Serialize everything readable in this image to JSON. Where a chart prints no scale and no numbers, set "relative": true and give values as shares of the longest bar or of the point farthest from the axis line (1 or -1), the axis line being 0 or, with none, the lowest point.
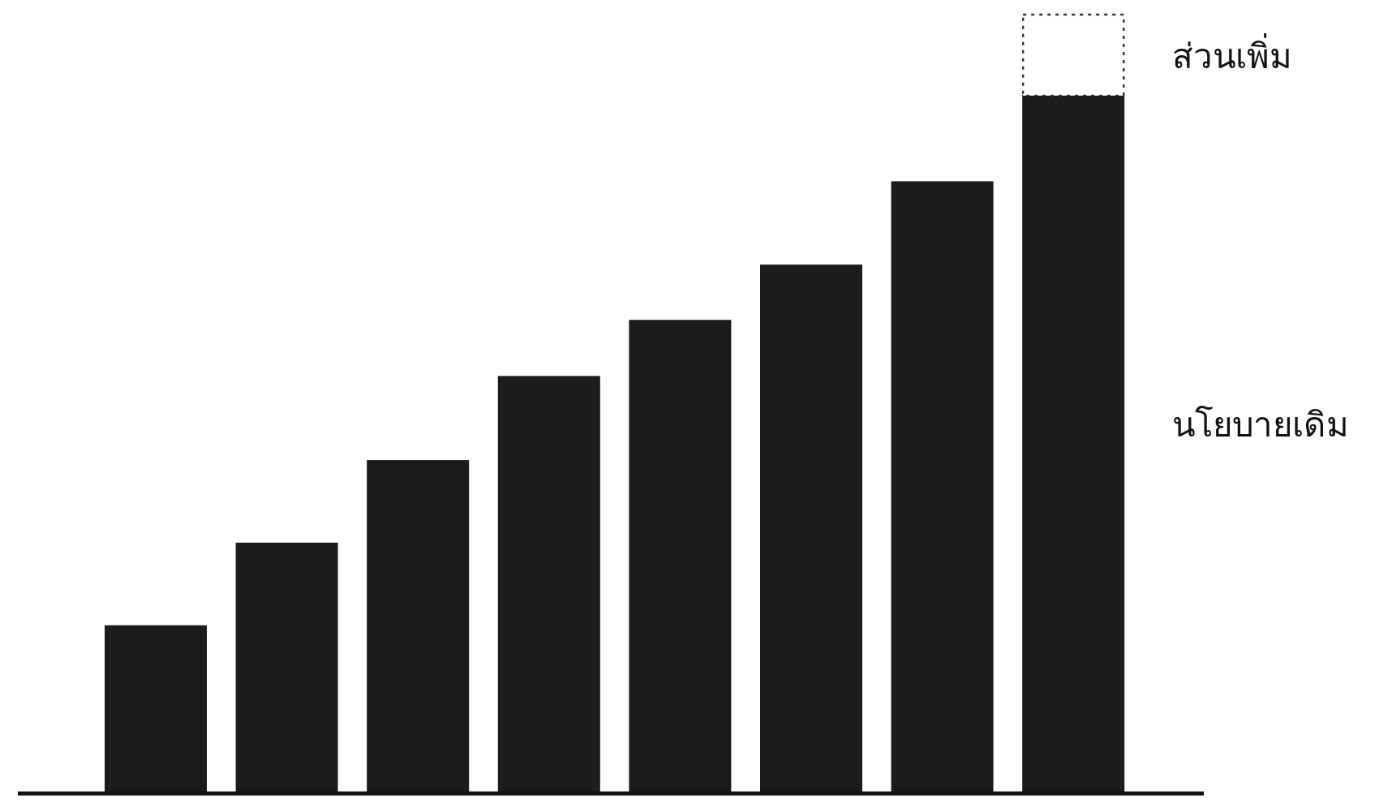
{
  "chart_data": {
    "type": "bar",
    "relative": true,
    "stacked": true,
    "categories": [
      null,
      null,
      null,
      null,
      null,
      null,
      null,
      null
    ],
    "series": [
      {
        "name": "นโยบายเดิม",
        "color": "#1c1c1c",
        "values": [
          0.215,
          0.321,
          0.427,
          0.535,
          0.607,
          0.678,
          0.785,
          0.896
        ]
      },
      {
        "name": "ส่วนเพิ่ม",
        "color": "#ffffff",
        "values": [
          null,
          null,
          null,
          null,
          null,
          null,
          null,
          0.104
        ]
      }
    ]
  }
}
